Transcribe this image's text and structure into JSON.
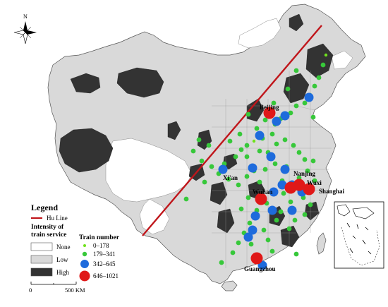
{
  "map": {
    "north_label": "N",
    "hu_line_color": "#c0161b",
    "colors": {
      "none": "#ffffff",
      "low": "#d9d9d9",
      "high": "#333333",
      "small_station": "#6fe21c",
      "mid_small_station": "#37c83a",
      "mid_station": "#1e6bdc",
      "large_station": "#e01818"
    },
    "cities": [
      {
        "name": "Beijing"
      },
      {
        "name": "Nanjing"
      },
      {
        "name": "Wuxi"
      },
      {
        "name": "Shanghai"
      },
      {
        "name": "Wuhan"
      },
      {
        "name": "Guangzhou"
      },
      {
        "name": "Xi'an"
      }
    ]
  },
  "legend": {
    "title": "Legend",
    "hu_line_label": "Hu Line",
    "intensity_heading_line1": "Intensity of",
    "intensity_heading_line2": "train service",
    "intensity_items": [
      "None",
      "Low",
      "High"
    ],
    "train_heading": "Train number",
    "train_items": [
      "0–178",
      "179–341",
      "342–645",
      "646–1021"
    ]
  },
  "scale": {
    "start_label": "0",
    "end_label": "500 KM"
  }
}
